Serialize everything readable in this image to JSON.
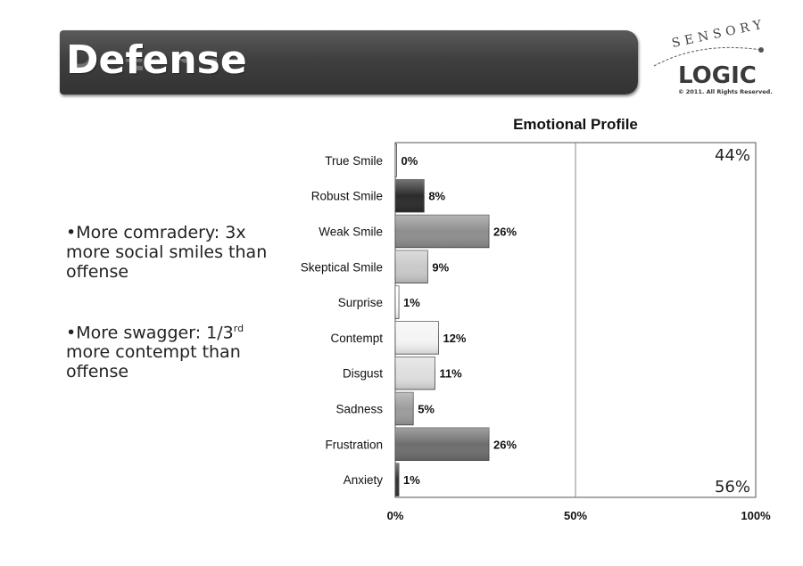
{
  "slide": {
    "title": "Defense",
    "logo": {
      "top_text": "SENSORY",
      "main_text": "LOGIC",
      "copyright": "© 2011.  All Rights Reserved."
    }
  },
  "bullets": [
    {
      "text": "•More comradery: 3x more social smiles than offense"
    },
    {
      "pre": "•More swagger: 1/3",
      "sup": "rd",
      "post": " more contempt than offense"
    }
  ],
  "chart_data": {
    "type": "bar",
    "orientation": "horizontal",
    "title": "Emotional Profile",
    "categories": [
      "True Smile",
      "Robust Smile",
      "Weak Smile",
      "Skeptical Smile",
      "Surprise",
      "Contempt",
      "Disgust",
      "Sadness",
      "Frustration",
      "Anxiety"
    ],
    "values": [
      0,
      8,
      26,
      9,
      1,
      12,
      11,
      5,
      26,
      1
    ],
    "value_labels": [
      "0%",
      "8%",
      "26%",
      "9%",
      "1%",
      "12%",
      "11%",
      "5%",
      "26%",
      "1%"
    ],
    "bar_colors": [
      "#ffffff",
      "#2b2b2b",
      "#8e8e8e",
      "#c9c9c9",
      "#ffffff",
      "#f4f4f4",
      "#dedede",
      "#9c9c9c",
      "#6e6e6e",
      "#333333"
    ],
    "xlim": [
      0,
      100
    ],
    "xticks": [
      "0%",
      "50%",
      "100%"
    ],
    "xtick_values": [
      0,
      50,
      100
    ],
    "annotations": [
      {
        "text": "44%",
        "placement": "top-right"
      },
      {
        "text": "56%",
        "placement": "bottom-right"
      }
    ]
  }
}
